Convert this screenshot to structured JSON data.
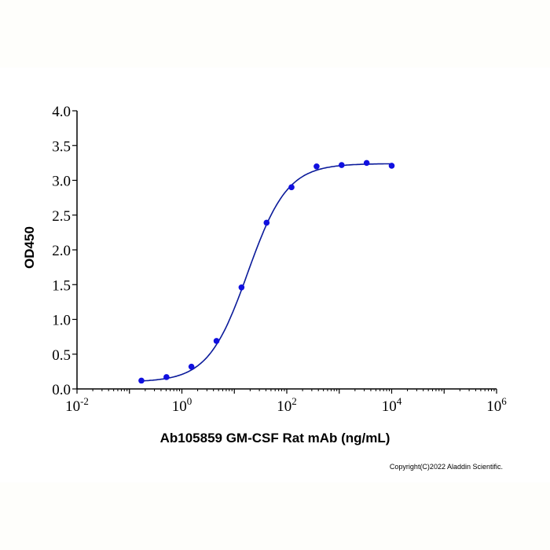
{
  "chart_data": {
    "type": "scatter",
    "xlabel": "Ab105859 GM-CSF Rat mAb (ng/mL)",
    "ylabel": "OD450",
    "x_scale": "log",
    "xlim": [
      0.01,
      1000000
    ],
    "ylim": [
      0,
      4.0
    ],
    "x_ticks": [
      {
        "base": "10",
        "exp": "-2",
        "v": 0.01
      },
      {
        "base": "10",
        "exp": "0",
        "v": 1
      },
      {
        "base": "10",
        "exp": "2",
        "v": 100
      },
      {
        "base": "10",
        "exp": "4",
        "v": 10000
      },
      {
        "base": "10",
        "exp": "6",
        "v": 1000000
      }
    ],
    "y_ticks": [
      "0.0",
      "0.5",
      "1.0",
      "1.5",
      "2.0",
      "2.5",
      "3.0",
      "3.5",
      "4.0"
    ],
    "grid": false,
    "color": "#1010e0",
    "curve_color": "#0a1a9a",
    "points": [
      {
        "x": 0.169,
        "y": 0.12
      },
      {
        "x": 0.508,
        "y": 0.17
      },
      {
        "x": 1.52,
        "y": 0.32
      },
      {
        "x": 4.57,
        "y": 0.69
      },
      {
        "x": 13.7,
        "y": 1.46
      },
      {
        "x": 41.2,
        "y": 2.39
      },
      {
        "x": 123,
        "y": 2.9
      },
      {
        "x": 370,
        "y": 3.2
      },
      {
        "x": 1111,
        "y": 3.22
      },
      {
        "x": 3333,
        "y": 3.25
      },
      {
        "x": 10000,
        "y": 3.21
      }
    ],
    "fit": {
      "model": "4PL",
      "bottom": 0.1,
      "top": 3.24,
      "ec50": 18,
      "hill": 1.15,
      "x_range": [
        0.169,
        10000
      ]
    }
  },
  "copyright": "Copyright(C)2022 Aladdin Scientific."
}
